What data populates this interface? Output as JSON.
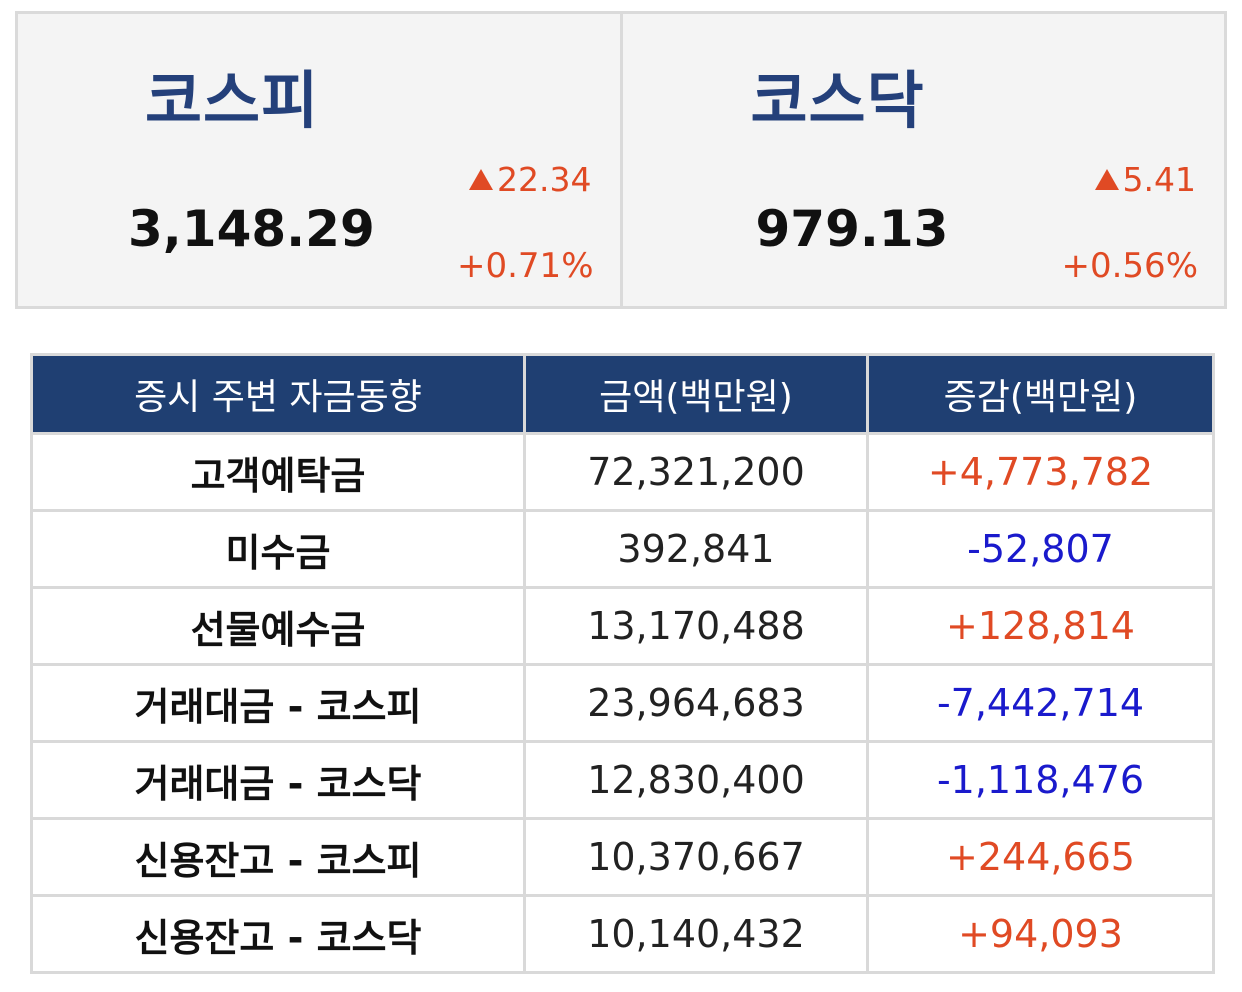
{
  "indices": {
    "kospi": {
      "name": "코스피",
      "value": "3,148.29",
      "change": "22.34",
      "rate": "+0.71%"
    },
    "kosdaq": {
      "name": "코스닥",
      "value": "979.13",
      "change": "5.41",
      "rate": "+0.56%"
    }
  },
  "colors": {
    "header_bg": "#1f3f72",
    "index_name": "#24407a",
    "positive": "#e04a24",
    "negative": "#1a1acc"
  },
  "icons": {
    "up": "up-triangle-icon"
  },
  "table": {
    "headers": [
      "증시 주변 자금동향",
      "금액(백만원)",
      "증감(백만원)"
    ],
    "rows": [
      {
        "label": "고객예탁금",
        "amount": "72,321,200",
        "change": "+4,773,782",
        "direction": "pos"
      },
      {
        "label": "미수금",
        "amount": "392,841",
        "change": "-52,807",
        "direction": "neg"
      },
      {
        "label": "선물예수금",
        "amount": "13,170,488",
        "change": "+128,814",
        "direction": "pos"
      },
      {
        "label": "거래대금 - 코스피",
        "amount": "23,964,683",
        "change": "-7,442,714",
        "direction": "neg"
      },
      {
        "label": "거래대금 - 코스닥",
        "amount": "12,830,400",
        "change": "-1,118,476",
        "direction": "neg"
      },
      {
        "label": "신용잔고 - 코스피",
        "amount": "10,370,667",
        "change": "+244,665",
        "direction": "pos"
      },
      {
        "label": "신용잔고 - 코스닥",
        "amount": "10,140,432",
        "change": "+94,093",
        "direction": "pos"
      }
    ]
  }
}
